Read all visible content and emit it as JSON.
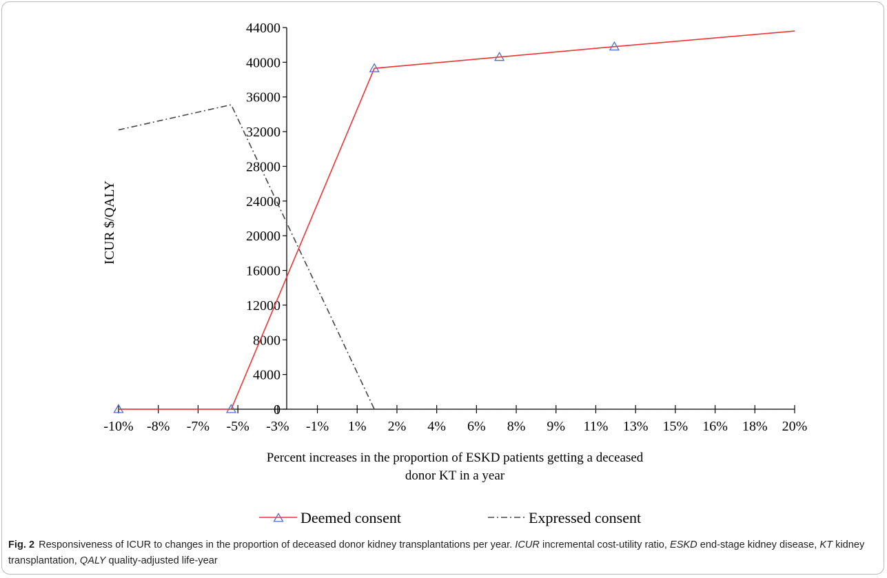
{
  "chart_data": {
    "type": "line",
    "ylabel": "ICUR $/QALY",
    "xlabel_lines": [
      "Percent increases in the proportion of ESKD patients getting a deceased",
      "donor KT in a year"
    ],
    "x_tick_labels": [
      "-10%",
      "-8%",
      "-7%",
      "-5%",
      "-3%",
      "-1%",
      "1%",
      "2%",
      "4%",
      "6%",
      "8%",
      "9%",
      "11%",
      "13%",
      "15%",
      "16%",
      "18%",
      "20%"
    ],
    "ylim": [
      0,
      44000
    ],
    "y_ticks": [
      0,
      4000,
      8000,
      12000,
      16000,
      20000,
      24000,
      28000,
      32000,
      36000,
      40000,
      44000
    ],
    "series": [
      {
        "name": "Deemed consent",
        "color": "#ee3333",
        "marker_color": "#4a6fcf",
        "marker": "triangle",
        "points": [
          {
            "x": -10,
            "y": 0,
            "marker": true
          },
          {
            "x": -5,
            "y": 0,
            "marker": true
          },
          {
            "x": 1.35,
            "y": 39300,
            "marker": true
          },
          {
            "x": 6.9,
            "y": 40600,
            "marker": true
          },
          {
            "x": 12,
            "y": 41800,
            "marker": true
          },
          {
            "x": 20,
            "y": 43600,
            "marker": false
          }
        ]
      },
      {
        "name": "Expressed consent",
        "color": "#444444",
        "dash": "9,4,2,4",
        "points": [
          {
            "x": -10,
            "y": 32200
          },
          {
            "x": -5,
            "y": 35100
          },
          {
            "x": 1.35,
            "y": 0
          },
          {
            "x": 20,
            "y": 0
          }
        ]
      }
    ],
    "legend_position": "bottom-center",
    "grid": false
  },
  "caption": {
    "figure_label": "Fig. 2",
    "segments": [
      {
        "text": "Responsiveness of ICUR to changes in the proportion of deceased donor kidney transplantations per year. ",
        "italic": false
      },
      {
        "text": "ICUR",
        "italic": true
      },
      {
        "text": " incremental cost-utility ratio, ",
        "italic": false
      },
      {
        "text": "ESKD",
        "italic": true
      },
      {
        "text": " end-stage kidney disease, ",
        "italic": false
      },
      {
        "text": "KT",
        "italic": true
      },
      {
        "text": " kidney transplantation, ",
        "italic": false
      },
      {
        "text": "QALY",
        "italic": true
      },
      {
        "text": " quality-adjusted life-year",
        "italic": false
      }
    ]
  }
}
